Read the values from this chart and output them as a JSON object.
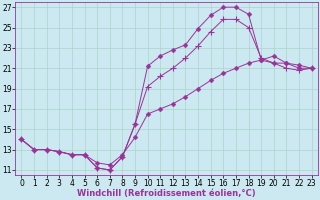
{
  "xlabel": "Windchill (Refroidissement éolien,°C)",
  "bg_color": "#cce8f0",
  "grid_color": "#aad4cc",
  "line_color": "#993399",
  "spine_color": "#993399",
  "xlim": [
    -0.5,
    23.5
  ],
  "ylim": [
    10.5,
    27.5
  ],
  "xticks": [
    0,
    1,
    2,
    3,
    4,
    5,
    6,
    7,
    8,
    9,
    10,
    11,
    12,
    13,
    14,
    15,
    16,
    17,
    18,
    19,
    20,
    21,
    22,
    23
  ],
  "yticks": [
    11,
    13,
    15,
    17,
    19,
    21,
    23,
    25,
    27
  ],
  "line1_x": [
    0,
    1,
    2,
    3,
    4,
    5,
    6,
    7,
    8,
    9,
    10,
    11,
    12,
    13,
    14,
    15,
    16,
    17,
    18,
    19,
    20,
    21,
    22,
    23
  ],
  "line1_y": [
    14.0,
    13.0,
    13.0,
    12.8,
    12.5,
    12.5,
    11.2,
    11.0,
    12.3,
    15.5,
    21.2,
    22.2,
    22.8,
    23.3,
    24.9,
    26.2,
    27.0,
    27.0,
    26.3,
    21.8,
    21.5,
    21.5,
    21.3,
    21.0
  ],
  "line2_x": [
    0,
    1,
    2,
    3,
    4,
    5,
    6,
    7,
    8,
    9,
    10,
    11,
    12,
    13,
    14,
    15,
    16,
    17,
    18,
    19,
    20,
    21,
    22,
    23
  ],
  "line2_y": [
    14.0,
    13.0,
    13.0,
    12.8,
    12.5,
    12.5,
    11.2,
    11.0,
    12.3,
    15.5,
    19.2,
    20.2,
    21.0,
    22.0,
    23.2,
    24.6,
    25.8,
    25.8,
    25.0,
    22.0,
    21.5,
    21.0,
    20.8,
    21.0
  ],
  "line3_x": [
    0,
    1,
    2,
    3,
    4,
    5,
    6,
    7,
    8,
    9,
    10,
    11,
    12,
    13,
    14,
    15,
    16,
    17,
    18,
    19,
    20,
    21,
    22,
    23
  ],
  "line3_y": [
    14.0,
    13.0,
    13.0,
    12.8,
    12.5,
    12.5,
    11.7,
    11.5,
    12.5,
    14.2,
    16.5,
    17.0,
    17.5,
    18.2,
    19.0,
    19.8,
    20.5,
    21.0,
    21.5,
    21.8,
    22.2,
    21.5,
    21.0,
    21.0
  ],
  "tick_fontsize": 5.5,
  "xlabel_fontsize": 6.0
}
